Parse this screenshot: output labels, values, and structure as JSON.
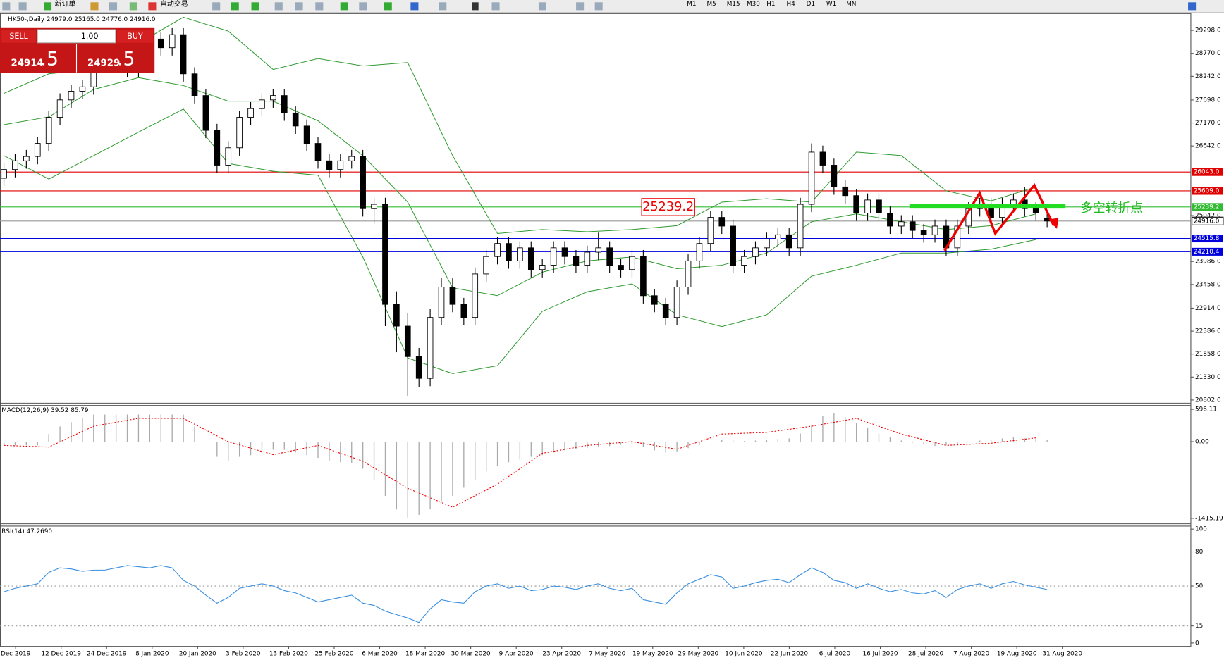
{
  "toolbar": {
    "new_order": "新订单",
    "auto_trading": "自动交易",
    "timeframes": [
      "M1",
      "M5",
      "M15",
      "M30",
      "H1",
      "H4",
      "D1",
      "W1",
      "MN"
    ]
  },
  "trade_panel": {
    "sell": "SELL",
    "buy": "BUY",
    "lots": "1.00",
    "bid_main": "24914",
    "bid_frac": ".5",
    "ask_main": "24929",
    "ask_frac": ".5"
  },
  "chart_data": [
    {
      "type": "candlestick",
      "title": "HK50-,Daily 24979.0 25165.0 24776.0 24916.0",
      "ylim": [
        20748,
        29674
      ],
      "yticks": [
        {
          "value": 29298,
          "label": "29298.0"
        },
        {
          "value": 28770,
          "label": "28770.0"
        },
        {
          "value": 28242,
          "label": "28242.0"
        },
        {
          "value": 27698,
          "label": "27698.0"
        },
        {
          "value": 27170,
          "label": "27170.0"
        },
        {
          "value": 26642,
          "label": "26642.0"
        },
        {
          "value": 25042,
          "label": "25042.0"
        },
        {
          "value": 23986,
          "label": "23986.0"
        },
        {
          "value": 23458,
          "label": "23458.0"
        },
        {
          "value": 22914,
          "label": "22914.0"
        },
        {
          "value": 22386,
          "label": "22386.0"
        },
        {
          "value": 21858,
          "label": "21858.0"
        },
        {
          "value": 21330,
          "label": "21330.0"
        },
        {
          "value": 20802,
          "label": "20802.0"
        }
      ],
      "x": [
        "Dec 2019",
        "12 Dec 2019",
        "24 Dec 2019",
        "8 Jan 2020",
        "20 Jan 2020",
        "3 Feb 2020",
        "13 Feb 2020",
        "25 Feb 2020",
        "6 Mar 2020",
        "18 Mar 2020",
        "30 Mar 2020",
        "9 Apr 2020",
        "23 Apr 2020",
        "7 May 2020",
        "19 May 2020",
        "29 May 2020",
        "10 Jun 2020",
        "22 Jun 2020",
        "6 Jul 2020",
        "16 Jul 2020",
        "28 Jul 2020",
        "7 Aug 2020",
        "19 Aug 2020",
        "31 Aug 2020"
      ],
      "ohlc": [
        [
          25900,
          26250,
          25720,
          26100
        ],
        [
          26100,
          26450,
          25920,
          26300
        ],
        [
          26300,
          26550,
          26120,
          26400
        ],
        [
          26400,
          26850,
          26220,
          26700
        ],
        [
          26700,
          27450,
          26520,
          27300
        ],
        [
          27300,
          27850,
          27120,
          27700
        ],
        [
          27700,
          28050,
          27520,
          27900
        ],
        [
          27900,
          28150,
          27720,
          28000
        ],
        [
          28000,
          28650,
          27820,
          28500
        ],
        [
          28500,
          28850,
          28320,
          28700
        ],
        [
          28700,
          28850,
          28420,
          28600
        ],
        [
          28600,
          28750,
          28220,
          28400
        ],
        [
          28400,
          29050,
          28220,
          28900
        ],
        [
          28900,
          29250,
          28720,
          29100
        ],
        [
          29100,
          29250,
          28720,
          28900
        ],
        [
          28900,
          29350,
          28720,
          29200
        ],
        [
          29200,
          29350,
          28120,
          28300
        ],
        [
          28300,
          28450,
          27620,
          27800
        ],
        [
          27800,
          27950,
          26820,
          27000
        ],
        [
          27000,
          27150,
          26020,
          26200
        ],
        [
          26200,
          26750,
          26020,
          26600
        ],
        [
          26600,
          27450,
          26420,
          27300
        ],
        [
          27300,
          27650,
          27120,
          27500
        ],
        [
          27500,
          27850,
          27320,
          27700
        ],
        [
          27700,
          27950,
          27520,
          27800
        ],
        [
          27800,
          27950,
          27220,
          27400
        ],
        [
          27400,
          27550,
          26920,
          27100
        ],
        [
          27100,
          27250,
          26520,
          26700
        ],
        [
          26700,
          26850,
          26120,
          26300
        ],
        [
          26300,
          26450,
          25920,
          26100
        ],
        [
          26100,
          26450,
          25920,
          26300
        ],
        [
          26300,
          26550,
          26120,
          26400
        ],
        [
          26400,
          26550,
          25020,
          25200
        ],
        [
          25200,
          25450,
          24850,
          25300
        ],
        [
          25300,
          25450,
          22500,
          23000
        ],
        [
          23000,
          23300,
          21900,
          22500
        ],
        [
          22500,
          22800,
          20900,
          21800
        ],
        [
          21800,
          22000,
          21100,
          21300
        ],
        [
          21300,
          22900,
          21120,
          22700
        ],
        [
          22700,
          23600,
          22520,
          23400
        ],
        [
          23400,
          23600,
          22820,
          23000
        ],
        [
          23000,
          23150,
          22520,
          22700
        ],
        [
          22700,
          23850,
          22520,
          23700
        ],
        [
          23700,
          24250,
          23520,
          24100
        ],
        [
          24100,
          24550,
          23920,
          24400
        ],
        [
          24400,
          24550,
          23820,
          24000
        ],
        [
          24000,
          24450,
          23820,
          24300
        ],
        [
          24300,
          24450,
          23620,
          23800
        ],
        [
          23800,
          24050,
          23620,
          23900
        ],
        [
          23900,
          24450,
          23720,
          24300
        ],
        [
          24300,
          24450,
          23920,
          24100
        ],
        [
          24100,
          24250,
          23720,
          23900
        ],
        [
          23900,
          24350,
          23720,
          24200
        ],
        [
          24200,
          24650,
          24020,
          24300
        ],
        [
          24300,
          24450,
          23720,
          23900
        ],
        [
          23900,
          24050,
          23620,
          23800
        ],
        [
          23800,
          24250,
          23620,
          24100
        ],
        [
          24100,
          24250,
          23020,
          23200
        ],
        [
          23200,
          23350,
          22820,
          23000
        ],
        [
          23000,
          23150,
          22520,
          22700
        ],
        [
          22700,
          23550,
          22520,
          23400
        ],
        [
          23400,
          24150,
          23220,
          24000
        ],
        [
          24000,
          24550,
          23820,
          24400
        ],
        [
          24400,
          25150,
          24220,
          25000
        ],
        [
          25000,
          25150,
          24620,
          24800
        ],
        [
          24800,
          24950,
          23720,
          23900
        ],
        [
          23900,
          24250,
          23720,
          24100
        ],
        [
          24100,
          24450,
          23920,
          24300
        ],
        [
          24300,
          24650,
          24120,
          24500
        ],
        [
          24500,
          24750,
          24320,
          24600
        ],
        [
          24600,
          24750,
          24120,
          24300
        ],
        [
          24300,
          25450,
          24120,
          25300
        ],
        [
          25300,
          26700,
          25120,
          26500
        ],
        [
          26500,
          26650,
          26020,
          26200
        ],
        [
          26200,
          26350,
          25520,
          25700
        ],
        [
          25700,
          25850,
          25320,
          25500
        ],
        [
          25500,
          25650,
          24920,
          25100
        ],
        [
          25100,
          25550,
          24920,
          25400
        ],
        [
          25400,
          25550,
          24920,
          25100
        ],
        [
          25100,
          25250,
          24620,
          24800
        ],
        [
          24800,
          25050,
          24620,
          24900
        ],
        [
          24900,
          25050,
          24520,
          24700
        ],
        [
          24700,
          24850,
          24420,
          24600
        ],
        [
          24600,
          24950,
          24420,
          24800
        ],
        [
          24800,
          24950,
          24120,
          24300
        ],
        [
          24300,
          24950,
          24120,
          24800
        ],
        [
          24800,
          25350,
          24620,
          25200
        ],
        [
          25200,
          25450,
          25020,
          25300
        ],
        [
          25300,
          25450,
          24820,
          25000
        ],
        [
          25000,
          25450,
          24820,
          25300
        ],
        [
          25300,
          25550,
          25120,
          25400
        ],
        [
          25400,
          25700,
          25020,
          25200
        ],
        [
          25200,
          25350,
          24920,
          25100
        ],
        [
          24979,
          25165,
          24776,
          24916
        ]
      ],
      "bands": [
        {
          "color": "#2e9a2e",
          "values": [
            27850,
            28300,
            28400,
            29000,
            29600,
            29280,
            28400,
            28650,
            28480,
            28560,
            26420,
            24630,
            24720,
            24670,
            24720,
            24810,
            25350,
            25430,
            25350,
            26500,
            26420,
            25610,
            25380,
            25700
          ]
        },
        {
          "color": "#2e9a2e",
          "values": [
            27130,
            27310,
            27940,
            28210,
            28030,
            27670,
            27670,
            27220,
            26420,
            25350,
            23380,
            23200,
            23740,
            24000,
            24090,
            23820,
            23900,
            24180,
            24900,
            25080,
            24900,
            24720,
            24810,
            25080
          ]
        },
        {
          "color": "#2e9a2e",
          "values": [
            26420,
            25880,
            26420,
            26960,
            27490,
            26240,
            26060,
            25970,
            24090,
            21770,
            21410,
            21590,
            22840,
            23290,
            23470,
            22760,
            22490,
            22760,
            23650,
            23900,
            24180,
            24180,
            24270,
            24490
          ]
        }
      ],
      "levels": [
        {
          "value": 26043,
          "label": "26043.0",
          "color": "#e00000"
        },
        {
          "value": 25609,
          "label": "25609.0",
          "color": "#e00000"
        },
        {
          "value": 25239.2,
          "label": "25239.2",
          "color": "#33bb33"
        },
        {
          "value": 24916,
          "label": "24916.0",
          "color": "#999999"
        },
        {
          "value": 24515.8,
          "label": "24515.8",
          "color": "#0000dd"
        },
        {
          "value": 24210.4,
          "label": "24210.4",
          "color": "#0000dd"
        }
      ],
      "annotations": [
        "25239.2",
        "多空转折点"
      ]
    },
    {
      "type": "macd",
      "title": "MACD(12,26,9) 39.52 85.79",
      "ylim": [
        -1501,
        667
      ],
      "yticks": [
        {
          "value": 596.11,
          "label": "596.11"
        },
        {
          "value": 0,
          "label": "0.00"
        },
        {
          "value": -1415.19,
          "label": "-1415.19"
        }
      ],
      "histogram": [
        -70,
        -70,
        -70,
        -70,
        140,
        280,
        360,
        430,
        500,
        500,
        500,
        500,
        500,
        500,
        500,
        500,
        500,
        280,
        0,
        -280,
        -360,
        -280,
        -250,
        -200,
        -150,
        -150,
        -200,
        -250,
        -300,
        -350,
        -380,
        -400,
        -500,
        -700,
        -1000,
        -1250,
        -1400,
        -1350,
        -1250,
        -1100,
        -1000,
        -850,
        -700,
        -550,
        -450,
        -380,
        -330,
        -280,
        -250,
        -200,
        -160,
        -140,
        -120,
        -100,
        -80,
        -60,
        -50,
        -100,
        -160,
        -200,
        -180,
        -120,
        -60,
        0,
        30,
        20,
        10,
        20,
        40,
        50,
        60,
        150,
        300,
        480,
        520,
        450,
        350,
        250,
        150,
        80,
        20,
        -20,
        -50,
        -80,
        -70,
        -40,
        0,
        20,
        40,
        60,
        80,
        60,
        50,
        40
      ],
      "signal": [
        -70,
        -100,
        285,
        430,
        430,
        0,
        -240,
        -70,
        -360,
        -860,
        -1210,
        -785,
        -215,
        -70,
        0,
        -140,
        140,
        170,
        285,
        430,
        140,
        -70,
        -30,
        70
      ]
    },
    {
      "type": "rsi",
      "title": "RSI(14) 47.2690",
      "ylim": [
        -2.6,
        102.6
      ],
      "yticks": [
        100,
        80,
        50,
        15,
        0
      ],
      "color": "#3a8fe0",
      "values": [
        45,
        48,
        50,
        52,
        62,
        66,
        65,
        63,
        64,
        64,
        66,
        68,
        67,
        66,
        68,
        66,
        55,
        50,
        42,
        35,
        40,
        48,
        50,
        52,
        50,
        46,
        44,
        40,
        36,
        38,
        40,
        42,
        35,
        33,
        28,
        25,
        22,
        18,
        30,
        38,
        36,
        35,
        45,
        50,
        52,
        48,
        50,
        46,
        47,
        50,
        49,
        47,
        50,
        52,
        48,
        46,
        48,
        38,
        36,
        34,
        44,
        52,
        56,
        60,
        58,
        48,
        50,
        53,
        55,
        56,
        53,
        60,
        66,
        62,
        55,
        53,
        48,
        52,
        48,
        45,
        47,
        44,
        43,
        46,
        40,
        47,
        50,
        52,
        48,
        52,
        54,
        51,
        49,
        47
      ]
    }
  ]
}
